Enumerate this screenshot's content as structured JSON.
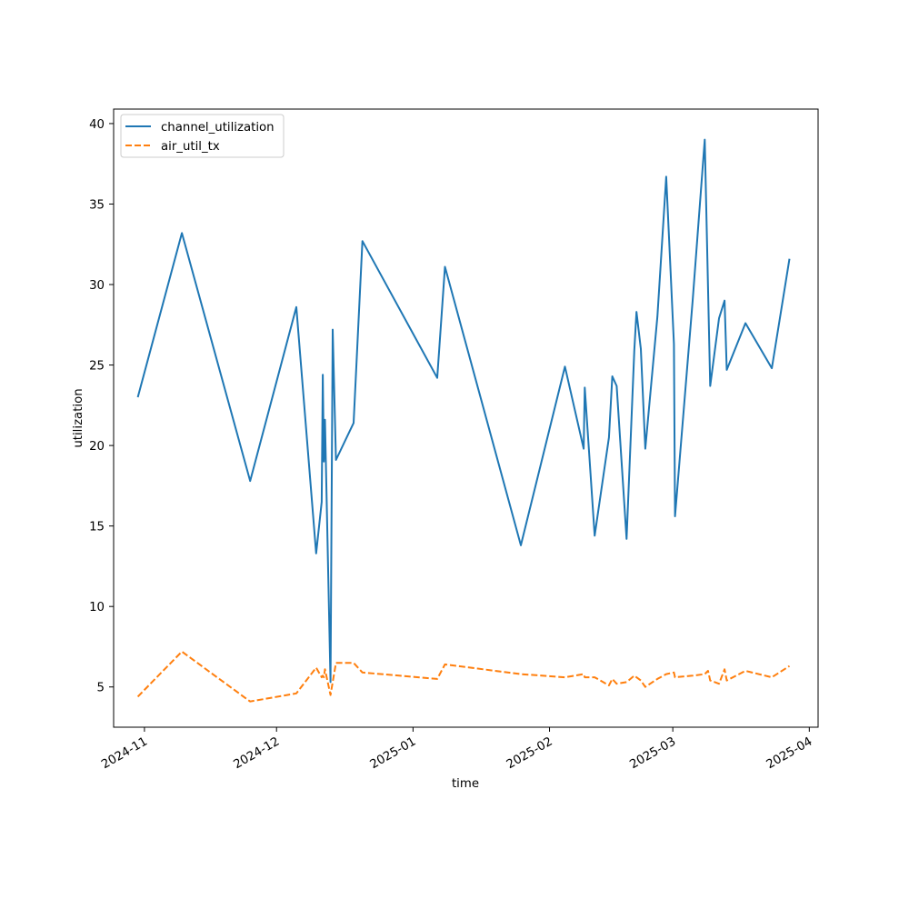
{
  "chart_data": {
    "type": "line",
    "title": "",
    "xlabel": "time",
    "ylabel": "utilization",
    "xlim": [
      "2024-10-25",
      "2025-04-03"
    ],
    "ylim": [
      2.5,
      40.9
    ],
    "x_ticks": [
      "2024-11",
      "2024-12",
      "2025-01",
      "2025-02",
      "2025-03",
      "2025-04"
    ],
    "y_ticks": [
      5,
      10,
      15,
      20,
      25,
      30,
      35,
      40
    ],
    "grid": false,
    "legend_position": "upper-left",
    "series": [
      {
        "name": "channel_utilization",
        "color": "#1f77b4",
        "dash": "solid",
        "points": [
          [
            "2024-10-30T12:00",
            23.0
          ],
          [
            "2024-11-09T12:00",
            33.2
          ],
          [
            "2024-11-25T00:00",
            17.8
          ],
          [
            "2024-12-05T12:00",
            28.6
          ],
          [
            "2024-12-10T00:00",
            13.3
          ],
          [
            "2024-12-11T06:00",
            16.5
          ],
          [
            "2024-12-11T12:00",
            24.4
          ],
          [
            "2024-12-11T18:00",
            19.0
          ],
          [
            "2024-12-12T00:00",
            21.6
          ],
          [
            "2024-12-13T06:00",
            5.3
          ],
          [
            "2024-12-13T18:00",
            27.2
          ],
          [
            "2024-12-14T12:00",
            19.1
          ],
          [
            "2024-12-18T12:00",
            21.4
          ],
          [
            "2024-12-20T12:00",
            32.7
          ],
          [
            "2025-01-06T12:00",
            24.2
          ],
          [
            "2025-01-08T06:00",
            31.1
          ],
          [
            "2025-01-25T12:00",
            13.8
          ],
          [
            "2025-02-04T12:00",
            24.9
          ],
          [
            "2025-02-08T18:00",
            19.8
          ],
          [
            "2025-02-09T00:00",
            23.6
          ],
          [
            "2025-02-11T06:00",
            14.4
          ],
          [
            "2025-02-14T12:00",
            20.5
          ],
          [
            "2025-02-15T06:00",
            24.3
          ],
          [
            "2025-02-16T06:00",
            23.7
          ],
          [
            "2025-02-18T12:00",
            14.2
          ],
          [
            "2025-02-20T06:00",
            25.9
          ],
          [
            "2025-02-20T18:00",
            28.3
          ],
          [
            "2025-02-21T18:00",
            26.0
          ],
          [
            "2025-02-22T18:00",
            19.8
          ],
          [
            "2025-02-25T12:00",
            28.0
          ],
          [
            "2025-02-27T12:00",
            36.7
          ],
          [
            "2025-03-01T06:00",
            26.3
          ],
          [
            "2025-03-01T12:00",
            15.6
          ],
          [
            "2025-03-05T12:00",
            29.0
          ],
          [
            "2025-03-08T06:00",
            39.0
          ],
          [
            "2025-03-09T12:00",
            23.7
          ],
          [
            "2025-03-11T12:00",
            27.9
          ],
          [
            "2025-03-12T18:00",
            29.0
          ],
          [
            "2025-03-13T06:00",
            24.7
          ],
          [
            "2025-03-17T12:00",
            27.6
          ],
          [
            "2025-03-23T12:00",
            24.8
          ],
          [
            "2025-03-27T12:00",
            31.6
          ]
        ]
      },
      {
        "name": "air_util_tx",
        "color": "#ff7f0e",
        "dash": "dashed",
        "points": [
          [
            "2024-10-30T12:00",
            4.4
          ],
          [
            "2024-11-09T12:00",
            7.2
          ],
          [
            "2024-11-25T00:00",
            4.1
          ],
          [
            "2024-12-05T12:00",
            4.6
          ],
          [
            "2024-12-10T00:00",
            6.2
          ],
          [
            "2024-12-11T06:00",
            5.6
          ],
          [
            "2024-12-11T12:00",
            5.7
          ],
          [
            "2024-12-11T18:00",
            5.6
          ],
          [
            "2024-12-12T00:00",
            6.1
          ],
          [
            "2024-12-13T06:00",
            4.5
          ],
          [
            "2024-12-13T18:00",
            5.3
          ],
          [
            "2024-12-14T12:00",
            6.5
          ],
          [
            "2024-12-18T12:00",
            6.5
          ],
          [
            "2024-12-20T12:00",
            5.9
          ],
          [
            "2025-01-06T12:00",
            5.5
          ],
          [
            "2025-01-08T06:00",
            6.4
          ],
          [
            "2025-01-25T12:00",
            5.8
          ],
          [
            "2025-02-04T12:00",
            5.6
          ],
          [
            "2025-02-08T18:00",
            5.8
          ],
          [
            "2025-02-09T00:00",
            5.6
          ],
          [
            "2025-02-11T06:00",
            5.6
          ],
          [
            "2025-02-14T12:00",
            5.1
          ],
          [
            "2025-02-15T06:00",
            5.5
          ],
          [
            "2025-02-16T06:00",
            5.2
          ],
          [
            "2025-02-18T12:00",
            5.3
          ],
          [
            "2025-02-20T06:00",
            5.7
          ],
          [
            "2025-02-20T18:00",
            5.6
          ],
          [
            "2025-02-21T18:00",
            5.4
          ],
          [
            "2025-02-22T18:00",
            5.0
          ],
          [
            "2025-02-25T12:00",
            5.5
          ],
          [
            "2025-02-27T12:00",
            5.8
          ],
          [
            "2025-03-01T06:00",
            5.9
          ],
          [
            "2025-03-01T12:00",
            5.6
          ],
          [
            "2025-03-05T12:00",
            5.7
          ],
          [
            "2025-03-08T06:00",
            5.8
          ],
          [
            "2025-03-09T00:00",
            6.0
          ],
          [
            "2025-03-09T12:00",
            5.4
          ],
          [
            "2025-03-11T12:00",
            5.2
          ],
          [
            "2025-03-12T18:00",
            6.1
          ],
          [
            "2025-03-13T06:00",
            5.4
          ],
          [
            "2025-03-17T12:00",
            6.0
          ],
          [
            "2025-03-23T12:00",
            5.6
          ],
          [
            "2025-03-27T12:00",
            6.3
          ]
        ]
      }
    ]
  }
}
